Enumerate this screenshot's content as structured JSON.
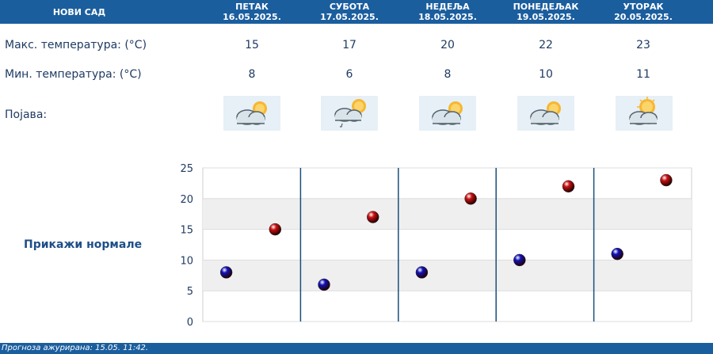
{
  "header": {
    "city": "НОВИ САД",
    "days": [
      {
        "name": "ПЕТАК",
        "date": "16.05.2025."
      },
      {
        "name": "СУБОТА",
        "date": "17.05.2025."
      },
      {
        "name": "НЕДЕЉА",
        "date": "18.05.2025."
      },
      {
        "name": "ПОНЕДЕЉАК",
        "date": "19.05.2025."
      },
      {
        "name": "УТОРАК",
        "date": "20.05.2025."
      }
    ]
  },
  "rows": {
    "max_label": "Макс. температура: (°C)",
    "min_label": "Мин. температура: (°C)",
    "weather_label": "Појава:",
    "max_values": [
      "15",
      "17",
      "20",
      "22",
      "23"
    ],
    "min_values": [
      "8",
      "6",
      "8",
      "10",
      "11"
    ],
    "weather_icons": [
      "cloudy-sun-icon",
      "cloudy-sun-drizzle-icon",
      "cloudy-sun-icon",
      "cloudy-sun-icon",
      "partly-cloudy-sun-icon"
    ]
  },
  "normals_link": "Прикажи нормале",
  "chart_data": {
    "type": "scatter",
    "categories": [
      "16.05.2025.",
      "17.05.2025.",
      "18.05.2025.",
      "19.05.2025.",
      "20.05.2025."
    ],
    "series": [
      {
        "values": [
          15,
          17,
          20,
          22,
          23
        ],
        "color": "#cc1111"
      },
      {
        "values": [
          8,
          6,
          8,
          10,
          11
        ],
        "color": "#1111bb"
      }
    ],
    "yticks": [
      "0",
      "5",
      "10",
      "15",
      "20",
      "25"
    ],
    "ylim": [
      0,
      25
    ],
    "grid": true
  },
  "footer": {
    "updated": "Прогноза ажурирана:  15.05. 11:42."
  },
  "colors": {
    "header_bg": "#1b5e9e",
    "text": "#1f3b63",
    "band": "#efefef"
  }
}
